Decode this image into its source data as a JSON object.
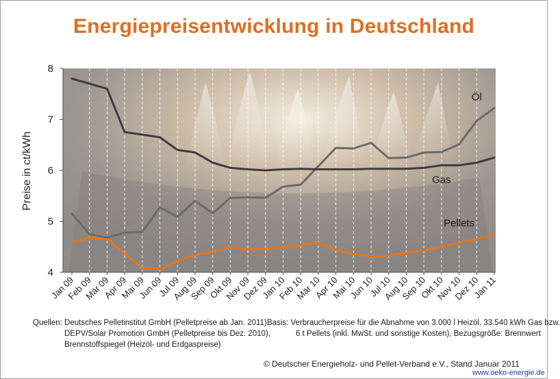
{
  "chart_data": {
    "type": "line",
    "title": "Energiepreisentwicklung in Deutschland",
    "ylabel": "Preise in ct/kWh",
    "ylim": [
      4,
      8
    ],
    "yticks": [
      4,
      5,
      6,
      7,
      8
    ],
    "grid": "vertical dashed",
    "categories": [
      "Jan 09",
      "Feb 09",
      "Mär 09",
      "Apr 09",
      "Mai 09",
      "Jun 09",
      "Jul 09",
      "Aug 09",
      "Sep 09",
      "Okt 09",
      "Nov 09",
      "Dez 09",
      "Jan 10",
      "Feb 10",
      "Mär 10",
      "Apr 10",
      "Mai 10",
      "Jun 10",
      "Jul 10",
      "Aug 10",
      "Sep 10",
      "Okt 10",
      "Nov 10",
      "Dez 10",
      "Jan 11"
    ],
    "series": [
      {
        "name": "Öl",
        "color": "#6a6a6a",
        "values": [
          5.15,
          4.75,
          4.68,
          4.78,
          4.79,
          5.27,
          5.09,
          5.4,
          5.16,
          5.46,
          5.47,
          5.46,
          5.68,
          5.72,
          6.08,
          6.44,
          6.43,
          6.54,
          6.24,
          6.25,
          6.35,
          6.36,
          6.51,
          6.97,
          7.22
        ]
      },
      {
        "name": "Gas",
        "color": "#3c3c3c",
        "values": [
          7.8,
          7.7,
          7.6,
          6.75,
          6.7,
          6.65,
          6.4,
          6.35,
          6.15,
          6.05,
          6.02,
          6.0,
          6.02,
          6.03,
          6.02,
          6.02,
          6.02,
          6.03,
          6.03,
          6.03,
          6.05,
          6.1,
          6.1,
          6.15,
          6.25
        ]
      },
      {
        "name": "Pellets",
        "color": "#e8751a",
        "values": [
          4.58,
          4.68,
          4.65,
          4.37,
          4.08,
          4.06,
          4.22,
          4.34,
          4.4,
          4.5,
          4.45,
          4.46,
          4.5,
          4.53,
          4.57,
          4.44,
          4.36,
          4.31,
          4.33,
          4.38,
          4.43,
          4.5,
          4.58,
          4.65,
          4.74
        ]
      }
    ]
  },
  "footer": {
    "sources_lines": [
      "Quellen: Deutsches Pelletinstitut GmbH (Pelletpreise ab Jan. 2011),",
      "DEPV/Solar Promotion GmbH (Pelletpreise bis Dez. 2010),",
      "Brennstoffspiegel (Heizöl- und Erdgaspreise)"
    ],
    "basis_lines": [
      "Basis: Verbraucherpreise für die Abnahme von 3.000 l Heizöl, 33.540 kWh Gas bzw.",
      "6 t Pellets (inkl. MwSt. und sonstige Kosten), Bezugsgröße: Brennwert"
    ],
    "copyright": "© Deutscher Energieholz- und Pellet-Verband e.V., Stand Januar 2011",
    "url": "www.oeko-energie.de"
  }
}
